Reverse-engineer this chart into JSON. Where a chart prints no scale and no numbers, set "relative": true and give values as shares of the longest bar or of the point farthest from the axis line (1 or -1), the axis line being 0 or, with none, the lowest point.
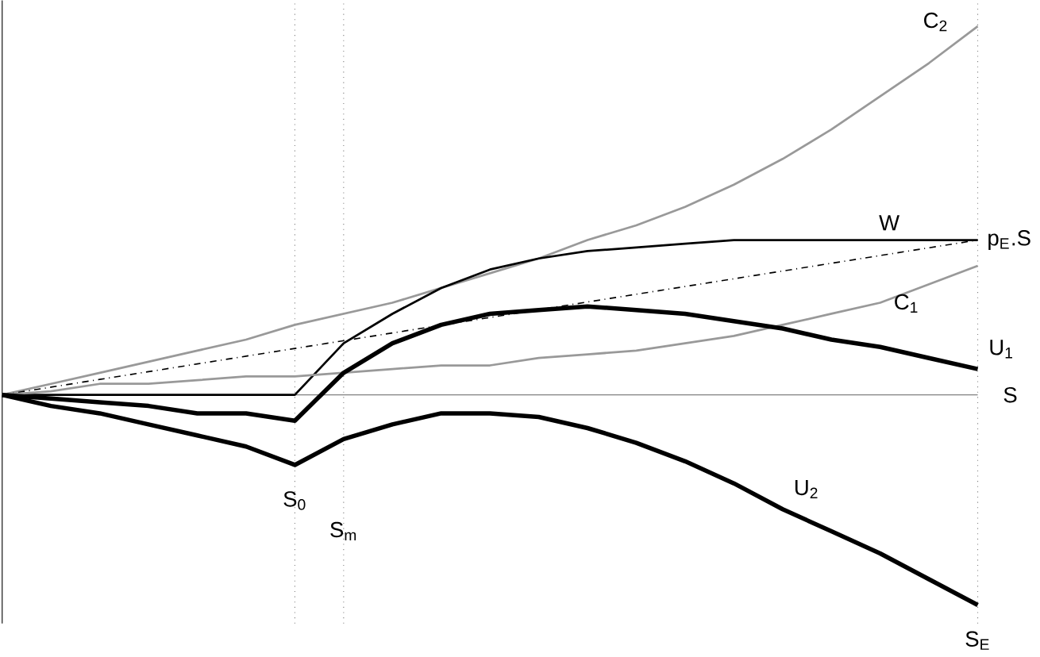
{
  "chart_data": {
    "type": "line",
    "relative": true,
    "xlabel": "S",
    "categories": [
      null,
      null,
      null,
      null,
      null,
      null,
      null,
      null,
      null,
      null,
      null,
      null,
      null,
      null,
      null,
      null,
      null,
      null,
      null,
      null,
      null
    ],
    "series": [
      {
        "name": "C$_{2}$",
        "color": "#999999",
        "values": [
          0,
          0.03,
          0.06,
          0.09,
          0.12,
          0.15,
          0.19,
          0.22,
          0.25,
          0.29,
          0.33,
          0.37,
          0.42,
          0.46,
          0.51,
          0.57,
          0.64,
          0.72,
          0.81,
          0.9,
          1
        ]
      },
      {
        "name": "W",
        "color": "#000000",
        "values": [
          0,
          0,
          0,
          0,
          0,
          0,
          0,
          0.14,
          0.22,
          0.29,
          0.34,
          0.37,
          0.39,
          0.4,
          0.41,
          0.42,
          0.42,
          0.42,
          0.42,
          0.42,
          0.42
        ]
      },
      {
        "name": "p$_{E}$.S",
        "color": "#000000",
        "line_style": "dashdot",
        "values": [
          0,
          0.021,
          0.042,
          0.063,
          0.084,
          0.105,
          0.126,
          0.147,
          0.168,
          0.189,
          0.21,
          0.231,
          0.252,
          0.273,
          0.294,
          0.315,
          0.336,
          0.357,
          0.378,
          0.399,
          0.42
        ]
      },
      {
        "name": "C$_{1}$",
        "color": "#999999",
        "values": [
          0,
          0.01,
          0.03,
          0.03,
          0.04,
          0.05,
          0.05,
          0.06,
          0.07,
          0.08,
          0.08,
          0.1,
          0.11,
          0.12,
          0.14,
          0.16,
          0.19,
          0.22,
          0.25,
          0.3,
          0.35
        ]
      },
      {
        "name": "U$_{1}$",
        "color": "#000000",
        "values": [
          0,
          -0.01,
          -0.02,
          -0.03,
          -0.05,
          -0.05,
          -0.07,
          0.06,
          0.14,
          0.19,
          0.22,
          0.23,
          0.24,
          0.23,
          0.22,
          0.2,
          0.18,
          0.15,
          0.13,
          0.1,
          0.07
        ]
      },
      {
        "name": "U$_{2}$",
        "color": "#000000",
        "values": [
          0,
          -0.03,
          -0.05,
          -0.08,
          -0.11,
          -0.14,
          -0.19,
          -0.12,
          -0.08,
          -0.05,
          -0.05,
          -0.06,
          -0.09,
          -0.13,
          -0.18,
          -0.24,
          -0.31,
          -0.37,
          -0.43,
          -0.5,
          -0.57
        ]
      }
    ],
    "annotations": [
      "S$_{0}$",
      "S$_{m}$",
      "S$_{E}$"
    ]
  }
}
